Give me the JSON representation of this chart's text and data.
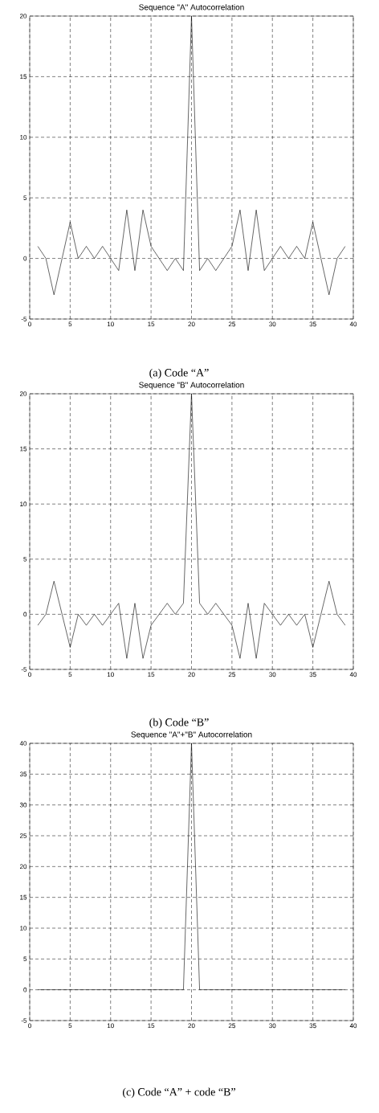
{
  "chart_data": [
    {
      "type": "line",
      "title": "Sequence \"A\" Autocorrelation",
      "annotations": [
        "(a) Code “A”"
      ],
      "x": [
        1,
        2,
        3,
        4,
        5,
        6,
        7,
        8,
        9,
        10,
        11,
        12,
        13,
        14,
        15,
        16,
        17,
        18,
        19,
        20,
        21,
        22,
        23,
        24,
        25,
        26,
        27,
        28,
        29,
        30,
        31,
        32,
        33,
        34,
        35,
        36,
        37,
        38,
        39
      ],
      "series": [
        {
          "color": "#000000",
          "values": [
            1,
            0,
            -3,
            0,
            3,
            0,
            1,
            0,
            1,
            0,
            -1,
            4,
            -1,
            4,
            1,
            0,
            -1,
            0,
            -1,
            20,
            -1,
            0,
            -1,
            0,
            1,
            4,
            -1,
            4,
            -1,
            0,
            1,
            0,
            1,
            0,
            3,
            0,
            -3,
            0,
            1
          ]
        }
      ],
      "xlim": [
        0,
        40
      ],
      "ylim": [
        -5,
        20
      ],
      "xticks": [
        0,
        5,
        10,
        15,
        20,
        25,
        30,
        35,
        40
      ],
      "yticks": [
        -5,
        0,
        5,
        10,
        15,
        20
      ],
      "grid": true,
      "line_style": "solid",
      "marker": "none"
    },
    {
      "type": "line",
      "title": "Sequence \"B\" Autocorrelation",
      "annotations": [
        "(b) Code “B”"
      ],
      "x": [
        1,
        2,
        3,
        4,
        5,
        6,
        7,
        8,
        9,
        10,
        11,
        12,
        13,
        14,
        15,
        16,
        17,
        18,
        19,
        20,
        21,
        22,
        23,
        24,
        25,
        26,
        27,
        28,
        29,
        30,
        31,
        32,
        33,
        34,
        35,
        36,
        37,
        38,
        39
      ],
      "series": [
        {
          "color": "#000000",
          "values": [
            -1,
            0,
            3,
            0,
            -3,
            0,
            -1,
            0,
            -1,
            0,
            1,
            -4,
            1,
            -4,
            -1,
            0,
            1,
            0,
            1,
            20,
            1,
            0,
            1,
            0,
            -1,
            -4,
            1,
            -4,
            1,
            0,
            -1,
            0,
            -1,
            0,
            -3,
            0,
            3,
            0,
            -1
          ]
        }
      ],
      "xlim": [
        0,
        40
      ],
      "ylim": [
        -5,
        20
      ],
      "xticks": [
        0,
        5,
        10,
        15,
        20,
        25,
        30,
        35,
        40
      ],
      "yticks": [
        -5,
        0,
        5,
        10,
        15,
        20
      ],
      "grid": true,
      "line_style": "solid",
      "marker": "none"
    },
    {
      "type": "line",
      "title": "Sequence \"A\"+\"B\" Autocorrelation",
      "annotations": [
        "(c) Code “A” + code “B”"
      ],
      "x": [
        1,
        2,
        3,
        4,
        5,
        6,
        7,
        8,
        9,
        10,
        11,
        12,
        13,
        14,
        15,
        16,
        17,
        18,
        19,
        20,
        21,
        22,
        23,
        24,
        25,
        26,
        27,
        28,
        29,
        30,
        31,
        32,
        33,
        34,
        35,
        36,
        37,
        38,
        39
      ],
      "series": [
        {
          "color": "#000000",
          "values": [
            0,
            0,
            0,
            0,
            0,
            0,
            0,
            0,
            0,
            0,
            0,
            0,
            0,
            0,
            0,
            0,
            0,
            0,
            0,
            40,
            0,
            0,
            0,
            0,
            0,
            0,
            0,
            0,
            0,
            0,
            0,
            0,
            0,
            0,
            0,
            0,
            0,
            0,
            0
          ]
        }
      ],
      "xlim": [
        0,
        40
      ],
      "ylim": [
        -5,
        40
      ],
      "xticks": [
        0,
        5,
        10,
        15,
        20,
        25,
        30,
        35,
        40
      ],
      "yticks": [
        -5,
        0,
        5,
        10,
        15,
        20,
        25,
        30,
        35,
        40
      ],
      "grid": true,
      "line_style": "solid",
      "marker": "none"
    }
  ]
}
